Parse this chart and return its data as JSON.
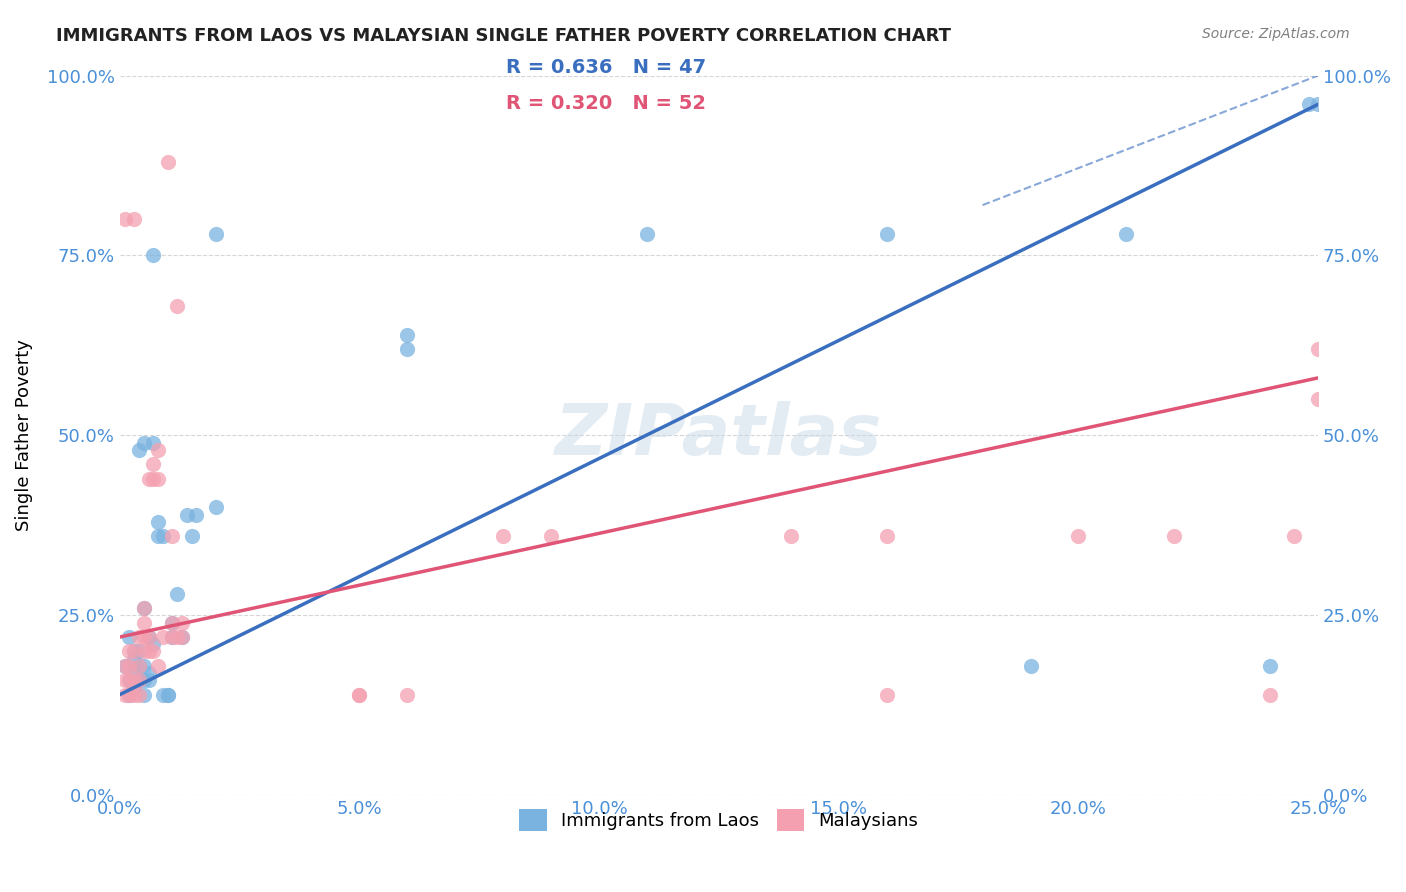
{
  "title": "IMMIGRANTS FROM LAOS VS MALAYSIAN SINGLE FATHER POVERTY CORRELATION CHART",
  "source": "Source: ZipAtlas.com",
  "xlabel_ticks": [
    "0.0%",
    "5.0%",
    "10.0%",
    "15.0%",
    "20.0%",
    "25.0%"
  ],
  "ylabel_ticks": [
    "0.0%",
    "25.0%",
    "50.0%",
    "75.0%",
    "100.0%"
  ],
  "xlim": [
    0.0,
    0.25
  ],
  "ylim": [
    0.0,
    1.0
  ],
  "legend_labels": [
    "Immigrants from Laos",
    "Malaysians"
  ],
  "legend_R": [
    "R = 0.636",
    "R = 0.320"
  ],
  "legend_N": [
    "N = 47",
    "N = 52"
  ],
  "blue_color": "#7ab3e0",
  "pink_color": "#f4a0b0",
  "blue_line_color": "#3a6fbf",
  "pink_line_color": "#e05575",
  "title_color": "#222222",
  "axis_label_color": "#4a90d9",
  "tick_color": "#4a90d9",
  "grid_color": "#cccccc",
  "watermark_color": "#c8d8e8",
  "blue_scatter": [
    [
      0.001,
      0.18
    ],
    [
      0.002,
      0.16
    ],
    [
      0.002,
      0.14
    ],
    [
      0.002,
      0.22
    ],
    [
      0.003,
      0.17
    ],
    [
      0.003,
      0.2
    ],
    [
      0.003,
      0.15
    ],
    [
      0.003,
      0.19
    ],
    [
      0.004,
      0.16
    ],
    [
      0.004,
      0.18
    ],
    [
      0.004,
      0.2
    ],
    [
      0.004,
      0.48
    ],
    [
      0.005,
      0.16
    ],
    [
      0.005,
      0.18
    ],
    [
      0.005,
      0.14
    ],
    [
      0.005,
      0.26
    ],
    [
      0.005,
      0.49
    ],
    [
      0.006,
      0.16
    ],
    [
      0.006,
      0.17
    ],
    [
      0.006,
      0.22
    ],
    [
      0.007,
      0.21
    ],
    [
      0.007,
      0.49
    ],
    [
      0.007,
      0.75
    ],
    [
      0.008,
      0.36
    ],
    [
      0.008,
      0.38
    ],
    [
      0.009,
      0.36
    ],
    [
      0.009,
      0.14
    ],
    [
      0.01,
      0.14
    ],
    [
      0.01,
      0.14
    ],
    [
      0.011,
      0.22
    ],
    [
      0.011,
      0.24
    ],
    [
      0.012,
      0.28
    ],
    [
      0.013,
      0.22
    ],
    [
      0.014,
      0.39
    ],
    [
      0.015,
      0.36
    ],
    [
      0.016,
      0.39
    ],
    [
      0.02,
      0.4
    ],
    [
      0.02,
      0.78
    ],
    [
      0.06,
      0.62
    ],
    [
      0.06,
      0.64
    ],
    [
      0.11,
      0.78
    ],
    [
      0.16,
      0.78
    ],
    [
      0.19,
      0.18
    ],
    [
      0.21,
      0.78
    ],
    [
      0.24,
      0.18
    ],
    [
      0.248,
      0.96
    ],
    [
      0.25,
      0.96
    ]
  ],
  "pink_scatter": [
    [
      0.001,
      0.14
    ],
    [
      0.001,
      0.16
    ],
    [
      0.001,
      0.18
    ],
    [
      0.001,
      0.8
    ],
    [
      0.002,
      0.14
    ],
    [
      0.002,
      0.16
    ],
    [
      0.002,
      0.18
    ],
    [
      0.002,
      0.2
    ],
    [
      0.003,
      0.14
    ],
    [
      0.003,
      0.16
    ],
    [
      0.003,
      0.2
    ],
    [
      0.003,
      0.8
    ],
    [
      0.004,
      0.14
    ],
    [
      0.004,
      0.16
    ],
    [
      0.004,
      0.18
    ],
    [
      0.004,
      0.22
    ],
    [
      0.005,
      0.2
    ],
    [
      0.005,
      0.22
    ],
    [
      0.005,
      0.24
    ],
    [
      0.005,
      0.26
    ],
    [
      0.006,
      0.2
    ],
    [
      0.006,
      0.22
    ],
    [
      0.006,
      0.44
    ],
    [
      0.007,
      0.2
    ],
    [
      0.007,
      0.44
    ],
    [
      0.007,
      0.46
    ],
    [
      0.008,
      0.18
    ],
    [
      0.008,
      0.44
    ],
    [
      0.008,
      0.48
    ],
    [
      0.009,
      0.22
    ],
    [
      0.01,
      0.88
    ],
    [
      0.011,
      0.22
    ],
    [
      0.011,
      0.24
    ],
    [
      0.011,
      0.36
    ],
    [
      0.012,
      0.22
    ],
    [
      0.012,
      0.68
    ],
    [
      0.013,
      0.22
    ],
    [
      0.013,
      0.24
    ],
    [
      0.05,
      0.14
    ],
    [
      0.05,
      0.14
    ],
    [
      0.06,
      0.14
    ],
    [
      0.08,
      0.36
    ],
    [
      0.09,
      0.36
    ],
    [
      0.14,
      0.36
    ],
    [
      0.16,
      0.14
    ],
    [
      0.16,
      0.36
    ],
    [
      0.2,
      0.36
    ],
    [
      0.22,
      0.36
    ],
    [
      0.24,
      0.14
    ],
    [
      0.245,
      0.36
    ],
    [
      0.25,
      0.55
    ],
    [
      0.25,
      0.62
    ]
  ],
  "blue_line_x": [
    0.0,
    0.25
  ],
  "blue_line_y": [
    0.14,
    0.96
  ],
  "pink_line_x": [
    0.0,
    0.25
  ],
  "pink_line_y": [
    0.22,
    0.58
  ],
  "dashed_line_x": [
    0.18,
    0.25
  ],
  "dashed_line_y": [
    0.82,
    1.0
  ]
}
